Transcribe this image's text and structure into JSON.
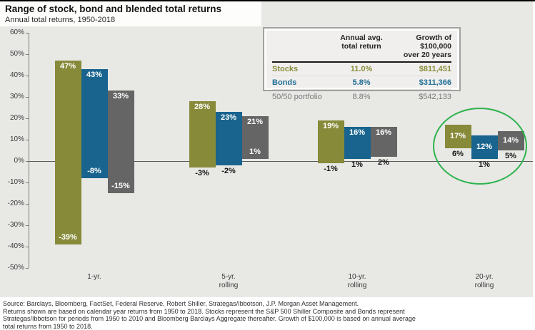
{
  "chart_data": {
    "type": "bar",
    "subtype": "floating-range-bars",
    "title": "Range of stock, bond and blended total returns",
    "subtitle": "Annual total returns, 1950-2018",
    "ylim": [
      -50,
      60
    ],
    "ytick_step": 10,
    "ytick_suffix": "%",
    "grid": false,
    "categories": [
      {
        "line1": "1-yr.",
        "line2": ""
      },
      {
        "line1": "5-yr.",
        "line2": "rolling"
      },
      {
        "line1": "10-yr.",
        "line2": "rolling"
      },
      {
        "line1": "20-yr.",
        "line2": "rolling"
      }
    ],
    "series": [
      {
        "name": "Stocks",
        "color": "#878a39",
        "max": [
          47,
          28,
          19,
          17
        ],
        "min": [
          -39,
          -3,
          -1,
          6
        ],
        "min_label_inside": [
          true,
          false,
          false,
          false
        ]
      },
      {
        "name": "Bonds",
        "color": "#18648e",
        "max": [
          43,
          23,
          16,
          12
        ],
        "min": [
          -8,
          -2,
          1,
          1
        ],
        "min_label_inside": [
          true,
          false,
          false,
          false
        ]
      },
      {
        "name": "50/50 portfolio",
        "color": "#656565",
        "max": [
          33,
          21,
          16,
          14
        ],
        "min": [
          -15,
          1,
          2,
          5
        ],
        "min_label_inside": [
          true,
          true,
          false,
          false
        ]
      }
    ],
    "annotation": {
      "shape": "ellipse",
      "around": "20-yr. rolling",
      "color": "#2db44e"
    }
  },
  "table": {
    "col2_header": {
      "line1": "Annual avg.",
      "line2": "total return"
    },
    "col3_header": {
      "line1": "Growth of $100,000",
      "line2": "over 20 years"
    },
    "rows": [
      {
        "label": "Stocks",
        "avg": "11.0%",
        "growth": "$811,451",
        "color": "#8a8c3c",
        "bold": true
      },
      {
        "label": "Bonds",
        "avg": "5.8%",
        "growth": "$311,366",
        "color": "#1f6e96",
        "bold": true
      },
      {
        "label": "50/50 portfolio",
        "avg": "8.8%",
        "growth": "$542,133",
        "color": "#77787a",
        "bold": false
      }
    ]
  },
  "footnote": {
    "lines": [
      "Source: Barclays, Bloomberg, FactSet, Federal Reserve, Robert Shiller, Strategas/Ibbotson, J.P. Morgan Asset Management.",
      "Returns shown are based on calendar year returns from 1950 to 2018. Stocks represent the S&P 500 Shiller Composite and Bonds represent",
      "Strategas/Ibbotson for periods from 1950 to 2010 and Bloomberg Barclays Aggregate thereafter. Growth of $100,000 is based on annual average",
      "total returns from 1950 to 2018."
    ]
  }
}
